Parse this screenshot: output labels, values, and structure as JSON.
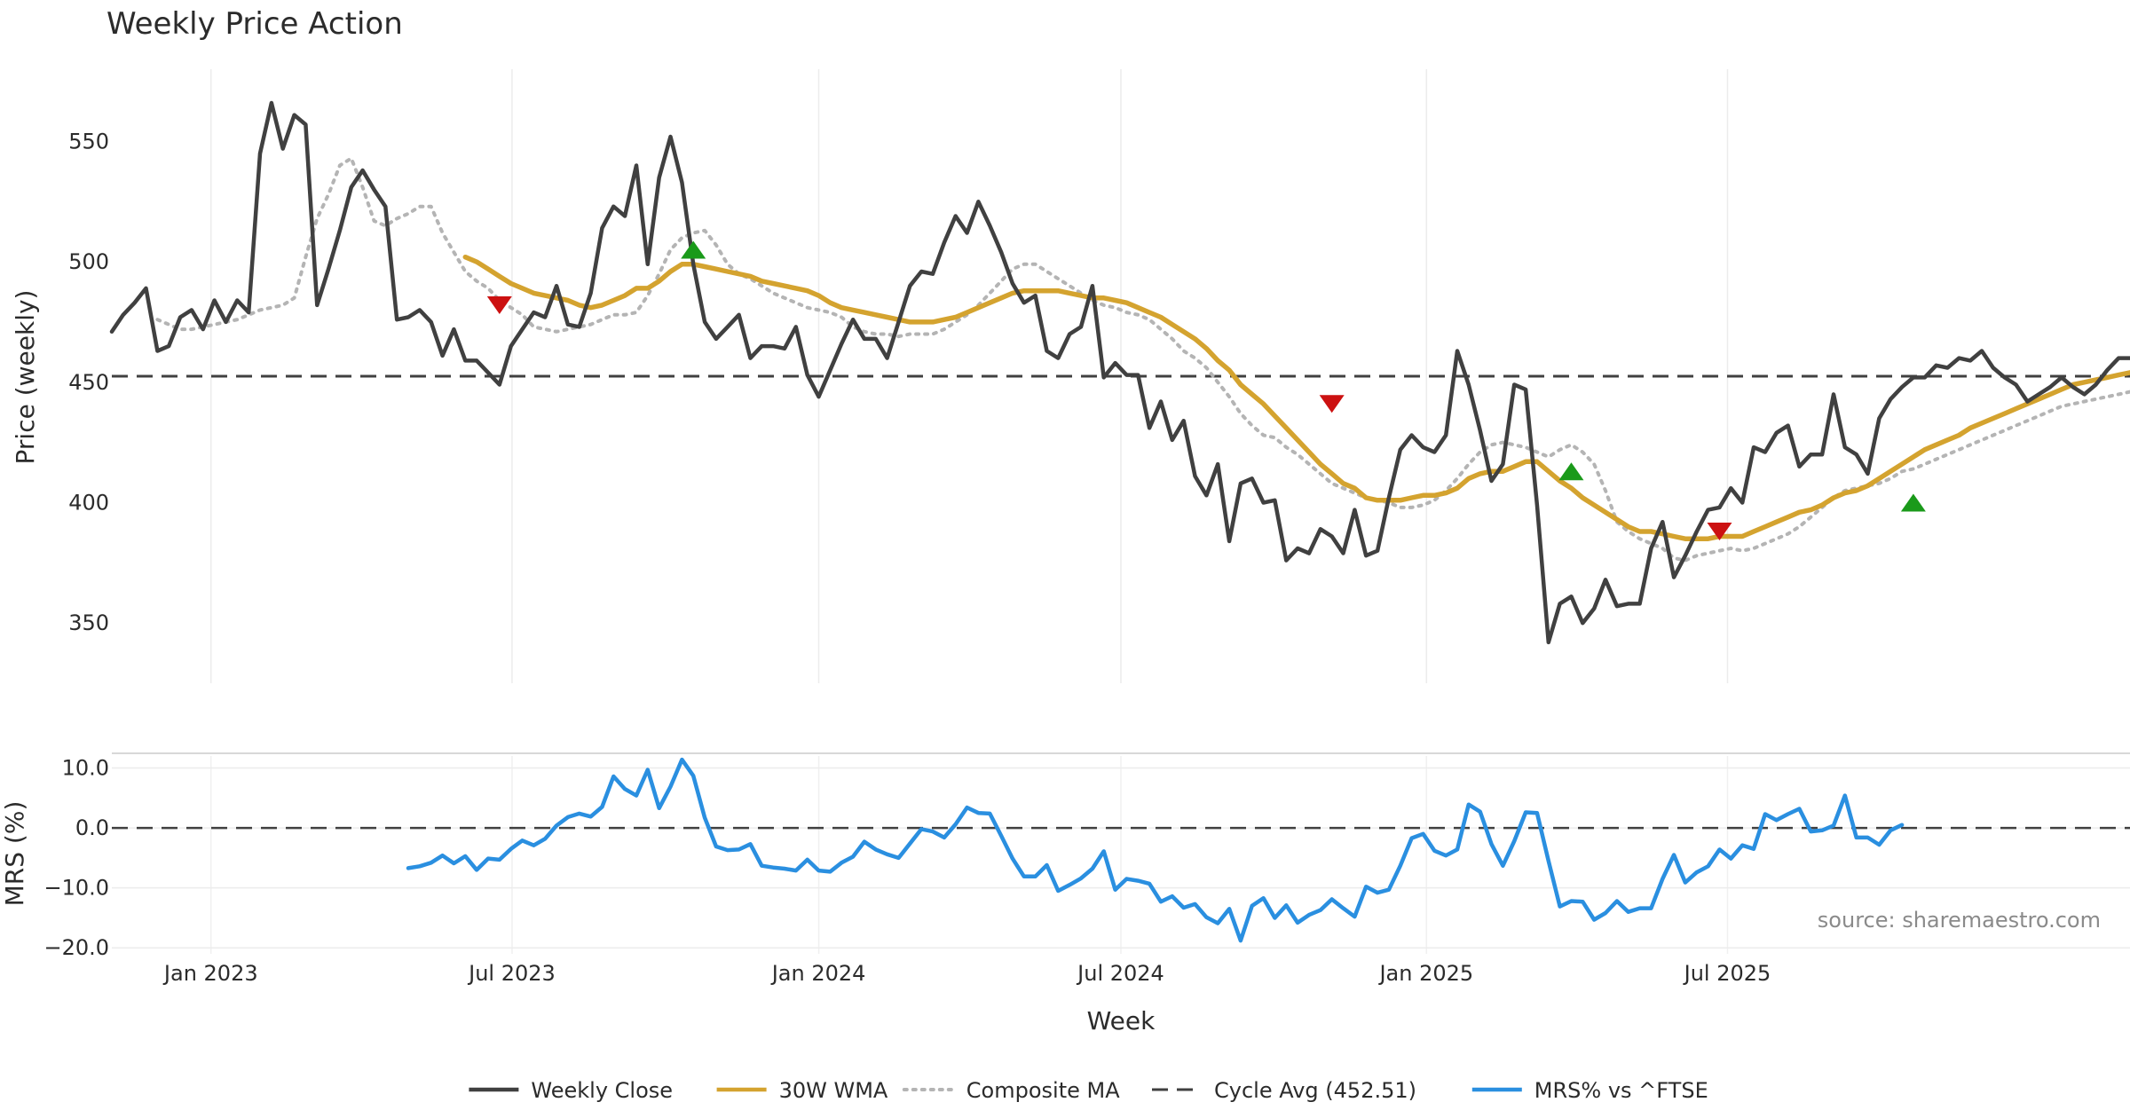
{
  "chart_data": [
    {
      "panel": "price",
      "type": "line",
      "title": "Weekly Price Action",
      "ylabel": "Price (weekly)",
      "ylim": [
        325,
        580
      ],
      "yticks": [
        350,
        400,
        450,
        500,
        550
      ],
      "xlim": [
        0,
        177
      ],
      "grid": true,
      "series": [
        {
          "name": "Weekly Close",
          "color": "#404040",
          "style": "solid",
          "x_start": 0,
          "values": [
            471,
            478,
            483,
            489,
            463,
            465,
            477,
            480,
            472,
            484,
            475,
            484,
            479,
            545,
            566,
            547,
            561,
            557,
            482,
            497,
            513,
            531,
            538,
            530,
            523,
            476,
            477,
            480,
            475,
            461,
            472,
            459,
            459,
            454,
            449,
            465,
            472,
            479,
            477,
            490,
            474,
            473,
            487,
            514,
            523,
            519,
            540,
            499,
            535,
            552,
            533,
            499,
            475,
            468,
            473,
            478,
            460,
            465,
            465,
            464,
            473,
            453,
            444,
            455,
            466,
            476,
            468,
            468,
            460,
            475,
            490,
            496,
            495,
            508,
            519,
            512,
            525,
            515,
            504,
            491,
            483,
            486,
            463,
            460,
            470,
            473,
            490,
            452,
            458,
            453,
            453,
            431,
            442,
            426,
            434,
            411,
            403,
            416,
            384,
            408,
            410,
            400,
            401,
            376,
            381,
            379,
            389,
            386,
            379,
            397,
            378,
            380,
            402,
            422,
            428,
            423,
            421,
            428,
            463,
            449,
            430,
            409,
            416,
            449,
            447,
            399,
            342,
            358,
            361,
            350,
            356,
            368,
            357,
            358,
            358,
            381,
            392,
            369,
            378,
            388,
            397,
            398,
            406,
            400,
            423,
            421,
            429,
            432,
            415,
            420,
            420,
            445,
            423,
            420,
            412,
            435,
            443,
            448,
            452,
            452,
            457,
            456,
            460,
            459,
            463,
            456,
            452,
            449,
            442,
            445,
            448,
            452,
            448,
            445,
            449,
            455,
            460,
            460
          ]
        },
        {
          "name": "30W WMA",
          "color": "#d4a32f",
          "style": "solid",
          "x_start": 31,
          "values": [
            502,
            500,
            497,
            494,
            491,
            489,
            487,
            486,
            485,
            484,
            482,
            481,
            482,
            484,
            486,
            489,
            489,
            492,
            496,
            499,
            499,
            498,
            497,
            496,
            495,
            494,
            492,
            491,
            490,
            489,
            488,
            486,
            483,
            481,
            480,
            479,
            478,
            477,
            476,
            475,
            475,
            475,
            476,
            477,
            479,
            481,
            483,
            485,
            487,
            488,
            488,
            488,
            488,
            487,
            486,
            485,
            485,
            484,
            483,
            481,
            479,
            477,
            474,
            471,
            468,
            464,
            459,
            455,
            449,
            445,
            441,
            436,
            431,
            426,
            421,
            416,
            412,
            408,
            406,
            402,
            401,
            401,
            401,
            402,
            403,
            403,
            404,
            406,
            410,
            412,
            413,
            413,
            415,
            417,
            417,
            413,
            409,
            406,
            402,
            399,
            396,
            393,
            390,
            388,
            388,
            387,
            386,
            385,
            385,
            385,
            386,
            386,
            386,
            388,
            390,
            392,
            394,
            396,
            397,
            399,
            402,
            404,
            405,
            407,
            410,
            413,
            416,
            419,
            422,
            424,
            426,
            428,
            431,
            433,
            435,
            437,
            439,
            441,
            443,
            445,
            447,
            449,
            450,
            451,
            452,
            453,
            454
          ]
        },
        {
          "name": "Composite MA",
          "color": "#b4b4b4",
          "style": "dotted",
          "x_start": 4,
          "values": [
            476,
            474,
            472,
            472,
            473,
            474,
            475,
            476,
            478,
            480,
            481,
            482,
            485,
            502,
            518,
            528,
            540,
            543,
            531,
            517,
            515,
            518,
            520,
            523,
            523,
            512,
            504,
            496,
            492,
            489,
            484,
            481,
            478,
            473,
            472,
            471,
            472,
            473,
            474,
            476,
            478,
            478,
            479,
            486,
            495,
            505,
            510,
            512,
            513,
            507,
            499,
            495,
            493,
            490,
            487,
            485,
            483,
            481,
            480,
            479,
            477,
            473,
            471,
            470,
            470,
            469,
            470,
            470,
            470,
            472,
            475,
            478,
            482,
            487,
            492,
            497,
            499,
            499,
            496,
            493,
            490,
            487,
            484,
            482,
            481,
            479,
            478,
            476,
            472,
            468,
            463,
            460,
            456,
            450,
            444,
            437,
            432,
            428,
            427,
            423,
            420,
            416,
            412,
            408,
            406,
            404,
            402,
            401,
            400,
            398,
            398,
            399,
            401,
            405,
            410,
            416,
            421,
            424,
            425,
            424,
            423,
            421,
            419,
            422,
            424,
            421,
            416,
            405,
            392,
            388,
            385,
            383,
            381,
            377,
            376,
            378,
            379,
            380,
            381,
            380,
            381,
            383,
            385,
            387,
            390,
            394,
            398,
            402,
            405,
            406,
            407,
            408,
            410,
            413,
            414,
            416,
            418,
            420,
            422,
            424,
            426,
            428,
            430,
            432,
            434,
            436,
            438,
            440,
            441,
            442,
            443,
            444,
            445,
            446
          ]
        },
        {
          "name": "Cycle Avg (452.51)",
          "color": "#404040",
          "style": "dashed",
          "value": 452.51
        }
      ],
      "markers": [
        {
          "kind": "sell",
          "x": 34,
          "y": 482,
          "color": "#cc1111"
        },
        {
          "kind": "buy",
          "x": 51,
          "y": 505,
          "color": "#1a9a1a"
        },
        {
          "kind": "sell",
          "x": 107,
          "y": 441,
          "color": "#cc1111"
        },
        {
          "kind": "buy",
          "x": 128,
          "y": 413,
          "color": "#1a9a1a"
        },
        {
          "kind": "sell",
          "x": 141,
          "y": 388,
          "color": "#cc1111"
        },
        {
          "kind": "buy",
          "x": 158,
          "y": 400,
          "color": "#1a9a1a"
        }
      ]
    },
    {
      "panel": "mrs",
      "type": "line",
      "ylabel": "MRS (%)",
      "xlabel": "Week",
      "ylim": [
        -21,
        12
      ],
      "yticks": [
        10,
        0,
        -10,
        -20
      ],
      "ytick_labels": [
        "10.0",
        "0.0",
        "−10.0",
        "−20.0"
      ],
      "xlim": [
        0,
        177
      ],
      "grid": true,
      "x_ticks": [
        {
          "x": 8.7,
          "label": "Jan 2023"
        },
        {
          "x": 35.1,
          "label": "Jul 2023"
        },
        {
          "x": 62.0,
          "label": "Jan 2024"
        },
        {
          "x": 88.5,
          "label": "Jul 2024"
        },
        {
          "x": 115.3,
          "label": "Jan 2025"
        },
        {
          "x": 141.7,
          "label": "Jul 2025"
        }
      ],
      "zero_line": 0,
      "series": [
        {
          "name": "MRS% vs ^FTSE",
          "color": "#2a8fe0",
          "style": "solid",
          "x_start": 26,
          "values": [
            -6.7,
            -6.4,
            -5.8,
            -4.6,
            -5.9,
            -4.7,
            -7.0,
            -5.1,
            -5.3,
            -3.5,
            -2.1,
            -2.9,
            -1.8,
            0.4,
            1.8,
            2.4,
            1.9,
            3.5,
            8.6,
            6.5,
            5.4,
            9.7,
            3.3,
            6.9,
            11.4,
            8.7,
            1.7,
            -3.1,
            -3.7,
            -3.6,
            -2.7,
            -6.3,
            -6.6,
            -6.8,
            -7.1,
            -5.3,
            -7.1,
            -7.3,
            -5.8,
            -4.8,
            -2.3,
            -3.6,
            -4.4,
            -5.0,
            -2.6,
            -0.2,
            -0.6,
            -1.6,
            0.6,
            3.4,
            2.5,
            2.4,
            -1.3,
            -5.1,
            -8.1,
            -8.1,
            -6.2,
            -10.5,
            -9.5,
            -8.4,
            -6.8,
            -3.9,
            -10.3,
            -8.5,
            -8.8,
            -9.3,
            -12.3,
            -11.4,
            -13.3,
            -12.7,
            -14.9,
            -15.9,
            -13.5,
            -18.8,
            -13.0,
            -11.7,
            -15.0,
            -12.9,
            -15.8,
            -14.5,
            -13.7,
            -11.9,
            -13.4,
            -14.8,
            -9.8,
            -10.8,
            -10.3,
            -6.3,
            -1.7,
            -1.0,
            -3.8,
            -4.6,
            -3.6,
            3.9,
            2.7,
            -2.7,
            -6.3,
            -2.2,
            2.6,
            2.5,
            -5.5,
            -13.1,
            -12.2,
            -12.3,
            -15.3,
            -14.2,
            -12.2,
            -14.0,
            -13.4,
            -13.4,
            -8.5,
            -4.5,
            -9.1,
            -7.4,
            -6.4,
            -3.6,
            -5.1,
            -2.9,
            -3.5,
            2.3,
            1.3,
            2.3,
            3.2,
            -0.6,
            -0.4,
            0.4,
            5.4,
            -1.6,
            -1.6,
            -2.8,
            -0.4,
            0.5
          ]
        }
      ]
    }
  ],
  "legend": [
    {
      "label": "Weekly Close",
      "color": "#404040",
      "style": "solid"
    },
    {
      "label": "30W WMA",
      "color": "#d4a32f",
      "style": "solid"
    },
    {
      "label": "Composite MA",
      "color": "#b4b4b4",
      "style": "dotted"
    },
    {
      "label": "Cycle Avg (452.51)",
      "color": "#404040",
      "style": "dashed"
    },
    {
      "label": "MRS% vs ^FTSE",
      "color": "#2a8fe0",
      "style": "solid"
    }
  ],
  "source": "source: sharemaestro.com"
}
